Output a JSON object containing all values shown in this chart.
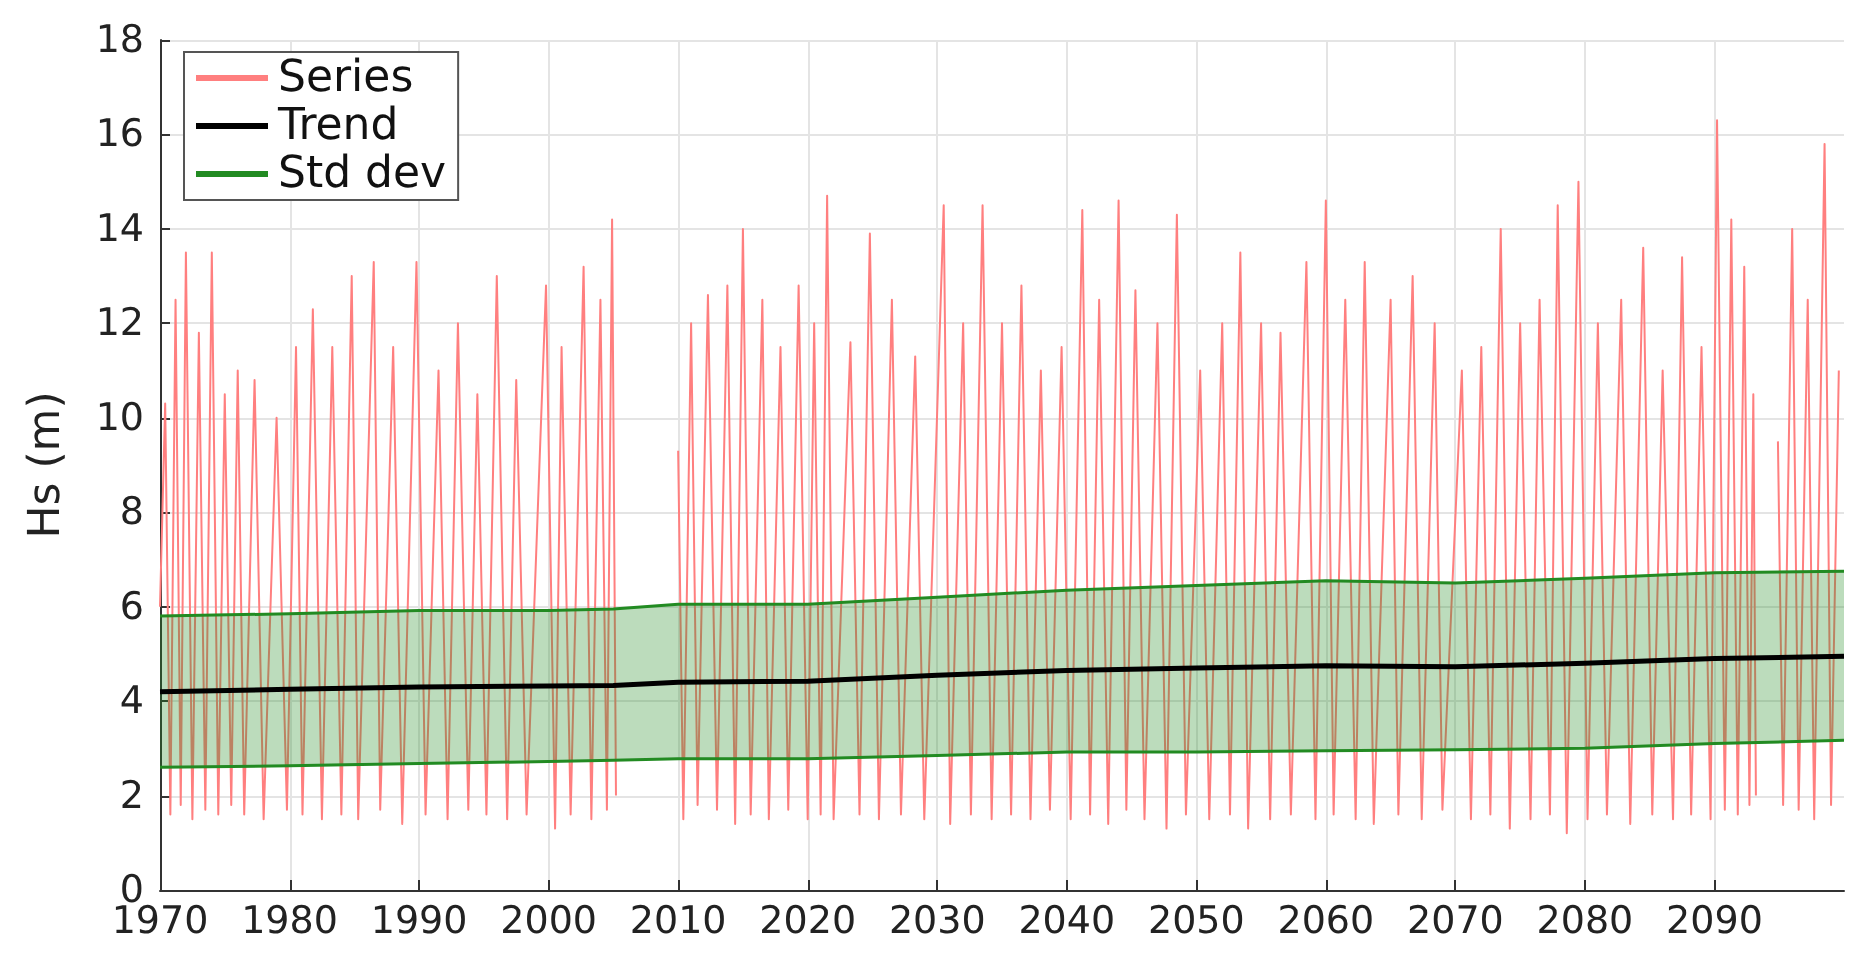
{
  "chart_data": {
    "type": "line",
    "ylabel": "Hs (m)",
    "xlim": [
      1970,
      2100
    ],
    "xticks": [
      1970,
      1980,
      1990,
      2000,
      2010,
      2020,
      2030,
      2040,
      2050,
      2060,
      2070,
      2080,
      2090
    ],
    "ylim": [
      0,
      18
    ],
    "yticks": [
      0,
      2,
      4,
      6,
      8,
      10,
      12,
      14,
      16,
      18
    ],
    "grid": true,
    "legend": "top left",
    "series": [
      {
        "name": "Series",
        "color": "#ff7f7f",
        "x": [
          1970.0,
          1970.4,
          1970.8,
          1971.2,
          1971.6,
          1972.0,
          1972.5,
          1973.0,
          1973.5,
          1974.0,
          1974.5,
          1975.0,
          1975.5,
          1976.0,
          1976.5,
          1977.3,
          1978.0,
          1979.0,
          1979.8,
          1980.5,
          1981.0,
          1981.8,
          1982.5,
          1983.3,
          1984.0,
          1984.8,
          1985.3,
          1986.5,
          1987.0,
          1988.0,
          1988.7,
          1989.8,
          1990.5,
          1991.5,
          1992.2,
          1993.0,
          1993.8,
          1994.5,
          1995.2,
          1996.0,
          1996.8,
          1997.5,
          1998.3,
          1999.8,
          2000.5,
          2001.0,
          2001.7,
          2002.7,
          2003.3,
          2004.0,
          2004.5,
          2004.9,
          2005.2,
          2007.5,
          2010.0,
          2010.4,
          2011.0,
          2011.5,
          2012.3,
          2013.0,
          2013.8,
          2014.4,
          2015.0,
          2015.6,
          2016.5,
          2017.0,
          2017.9,
          2018.5,
          2019.3,
          2020.0,
          2020.5,
          2021.0,
          2021.5,
          2022.0,
          2023.3,
          2024.0,
          2024.8,
          2025.5,
          2026.5,
          2027.2,
          2028.3,
          2029.0,
          2030.5,
          2031.0,
          2032.0,
          2032.6,
          2033.5,
          2034.2,
          2035.0,
          2035.7,
          2036.5,
          2037.2,
          2038.0,
          2038.7,
          2039.6,
          2040.3,
          2041.2,
          2041.8,
          2042.5,
          2043.2,
          2044.0,
          2044.6,
          2045.3,
          2046.0,
          2047.0,
          2047.7,
          2048.5,
          2049.2,
          2050.3,
          2051.0,
          2052.0,
          2052.6,
          2053.4,
          2054.0,
          2055.0,
          2055.7,
          2056.5,
          2057.3,
          2058.5,
          2059.2,
          2060.0,
          2060.6,
          2061.5,
          2062.3,
          2063.0,
          2063.7,
          2065.0,
          2065.6,
          2066.7,
          2067.4,
          2068.4,
          2069.0,
          2070.5,
          2071.2,
          2072.0,
          2072.7,
          2073.5,
          2074.2,
          2075.0,
          2075.8,
          2076.5,
          2077.3,
          2077.9,
          2078.6,
          2079.5,
          2080.2,
          2081.0,
          2081.7,
          2082.8,
          2083.5,
          2084.5,
          2085.2,
          2086.0,
          2086.8,
          2087.5,
          2088.2,
          2089.0,
          2089.7,
          2090.2,
          2090.8,
          2091.3,
          2091.8,
          2092.3,
          2092.7,
          2093.0,
          2093.2,
          2094.0,
          2094.9,
          2095.3,
          2096.0,
          2096.5,
          2097.2,
          2097.7,
          2098.5,
          2099.0,
          2099.6
        ],
        "values": [
          6,
          10.3,
          1.6,
          12.5,
          1.8,
          13.5,
          1.5,
          11.8,
          1.7,
          13.5,
          1.6,
          10.5,
          1.8,
          11,
          1.6,
          10.8,
          1.5,
          10,
          1.7,
          11.5,
          1.6,
          12.3,
          1.5,
          11.5,
          1.6,
          13,
          1.5,
          13.3,
          1.7,
          11.5,
          1.4,
          13.3,
          1.6,
          11,
          1.5,
          12,
          1.7,
          10.5,
          1.6,
          13,
          1.5,
          10.8,
          1.6,
          12.8,
          1.3,
          11.5,
          1.6,
          13.2,
          1.5,
          12.5,
          1.7,
          14.2,
          2,
          null,
          9.3,
          1.5,
          12,
          1.8,
          12.6,
          1.7,
          12.8,
          1.4,
          14,
          1.6,
          12.5,
          1.5,
          11.5,
          1.7,
          12.8,
          1.5,
          12,
          1.6,
          14.7,
          1.5,
          11.6,
          1.6,
          13.9,
          1.5,
          12.5,
          1.6,
          11.3,
          1.5,
          14.5,
          1.4,
          12,
          1.6,
          14.5,
          1.5,
          12,
          1.6,
          12.8,
          1.5,
          11,
          1.7,
          11.5,
          1.5,
          14.4,
          1.6,
          12.5,
          1.4,
          14.6,
          1.7,
          12.7,
          1.5,
          12,
          1.3,
          14.3,
          1.6,
          11,
          1.5,
          12,
          1.6,
          13.5,
          1.3,
          12,
          1.5,
          11.8,
          1.6,
          13.3,
          1.5,
          14.6,
          1.6,
          12.5,
          1.5,
          13.3,
          1.4,
          12.5,
          1.6,
          13,
          1.5,
          12,
          1.7,
          11,
          1.5,
          11.5,
          1.6,
          14,
          1.3,
          12,
          1.5,
          12.5,
          1.6,
          14.5,
          1.2,
          15,
          1.5,
          12,
          1.6,
          12.5,
          1.4,
          13.6,
          1.6,
          11,
          1.5,
          13.4,
          1.6,
          11.5,
          1.5,
          16.3,
          1.7,
          14.2,
          1.6,
          13.2,
          1.8,
          10.5,
          2,
          null,
          9.5,
          1.8,
          14,
          1.7,
          12.5,
          1.5,
          15.8,
          1.8,
          11
        ]
      },
      {
        "name": "Trend",
        "color": "#000000",
        "x": [
          1970,
          1980,
          1990,
          2000,
          2005,
          2010,
          2020,
          2030,
          2040,
          2050,
          2060,
          2070,
          2080,
          2090,
          2100
        ],
        "values": [
          4.2,
          4.25,
          4.3,
          4.32,
          4.33,
          4.4,
          4.42,
          4.55,
          4.65,
          4.7,
          4.75,
          4.73,
          4.8,
          4.9,
          4.95
        ],
        "lower": [
          2.6,
          2.63,
          2.68,
          2.72,
          2.75,
          2.78,
          2.78,
          2.85,
          2.92,
          2.92,
          2.95,
          2.97,
          3.0,
          3.1,
          3.17
        ],
        "upper": [
          5.8,
          5.85,
          5.92,
          5.92,
          5.95,
          6.05,
          6.05,
          6.2,
          6.35,
          6.45,
          6.55,
          6.5,
          6.6,
          6.72,
          6.75
        ]
      },
      {
        "name": "Std dev",
        "color": "#228b22",
        "x": [
          1970,
          1980,
          1990,
          2000,
          2005,
          2010,
          2020,
          2030,
          2040,
          2050,
          2060,
          2070,
          2080,
          2090,
          2100
        ],
        "values": [
          5.8,
          5.85,
          5.92,
          5.92,
          5.95,
          6.05,
          6.05,
          6.2,
          6.35,
          6.45,
          6.55,
          6.5,
          6.6,
          6.72,
          6.75
        ]
      },
      {
        "color": "#228b22",
        "x": [
          1970,
          1980,
          1990,
          2000,
          2005,
          2010,
          2020,
          2030,
          2040,
          2050,
          2060,
          2070,
          2080,
          2090,
          2100
        ],
        "values": [
          2.6,
          2.63,
          2.68,
          2.72,
          2.75,
          2.78,
          2.78,
          2.85,
          2.92,
          2.92,
          2.95,
          2.97,
          3.0,
          3.1,
          3.17
        ]
      }
    ]
  }
}
